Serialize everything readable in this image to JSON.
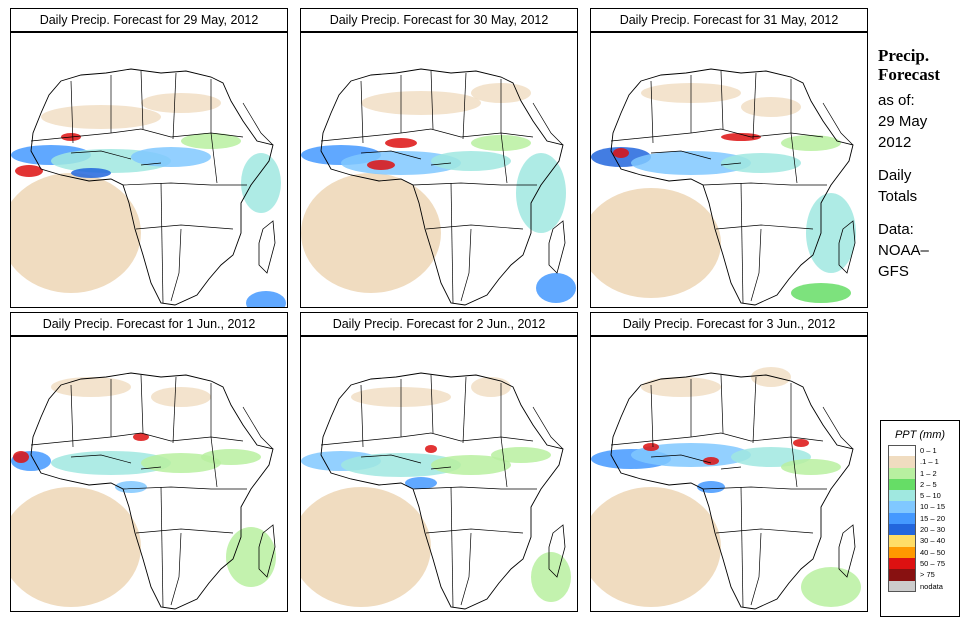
{
  "panels": [
    {
      "title": "Daily Precip. Forecast for  29 May, 2012"
    },
    {
      "title": "Daily Precip. Forecast for  30 May, 2012"
    },
    {
      "title": "Daily Precip. Forecast for  31 May, 2012"
    },
    {
      "title": "Daily Precip. Forecast for  1 Jun., 2012"
    },
    {
      "title": "Daily Precip. Forecast for  2 Jun., 2012"
    },
    {
      "title": "Daily Precip. Forecast for  3 Jun., 2012"
    }
  ],
  "sidebar": {
    "heading1": "Precip.",
    "heading2": "Forecast",
    "asof": "as of:",
    "date1": "29 May",
    "date2": "2012",
    "totals1": "Daily",
    "totals2": "Totals",
    "data1": "Data:",
    "data2": "NOAA–",
    "data3": "GFS"
  },
  "legend": {
    "title": "PPT (mm)",
    "items": [
      {
        "label": "0 – 1",
        "color": "#ffffff"
      },
      {
        "label": ".1 – 1",
        "color": "#f0dcc0"
      },
      {
        "label": "1 – 2",
        "color": "#b8f0a0"
      },
      {
        "label": "2 – 5",
        "color": "#66dd66"
      },
      {
        "label": "5 – 10",
        "color": "#a0e8e0"
      },
      {
        "label": "10 – 15",
        "color": "#80c8ff"
      },
      {
        "label": "15 – 20",
        "color": "#4499ff"
      },
      {
        "label": "20 – 30",
        "color": "#2266dd"
      },
      {
        "label": "30 – 40",
        "color": "#ffdd66"
      },
      {
        "label": "40 – 50",
        "color": "#ff9900"
      },
      {
        "label": "50 – 75",
        "color": "#dd1111"
      },
      {
        "label": "> 75",
        "color": "#881111"
      },
      {
        "label": "nodata",
        "color": "#cccccc"
      }
    ]
  }
}
